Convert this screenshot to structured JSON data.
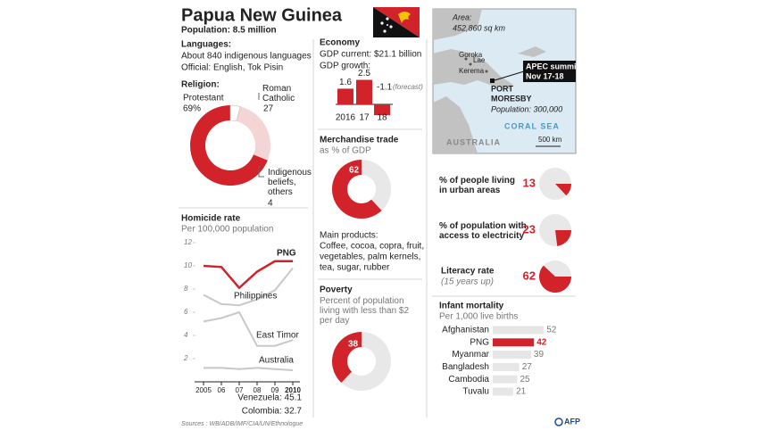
{
  "header": {
    "title": "Papua New Guinea",
    "population": "Population: 8.5 million"
  },
  "languages": {
    "heading": "Languages:",
    "lines": [
      "About 840 indigenous languages",
      "Official: English, Tok Pisin"
    ]
  },
  "economy": {
    "heading": "Economy",
    "lines": [
      "GDP current: $21.1 billion",
      "GDP growth:"
    ]
  },
  "main_products": {
    "heading": "Main products:",
    "lines": [
      "Coffee, cocoa, copra, fruit,",
      "vegetables, palm kernels,",
      "tea, sugar, rubber"
    ]
  },
  "map": {
    "area": [
      "Area:",
      "452,860 sq km"
    ],
    "places": [
      "Goroka",
      "Lae",
      "Kerema"
    ],
    "event": [
      "APEC summit",
      "Nov 17-18"
    ],
    "capital": [
      "PORT",
      "MORESBY"
    ],
    "capital_population": "Population: 300,000",
    "sea": "CORAL SEA",
    "country": "AUSTRALIA",
    "scale": "500 km"
  },
  "sources": "Sources : WB/ADB/IMF/CIA/UN/Ethnologue",
  "credit": "AFP",
  "chart_data": [
    {
      "type": "pie",
      "title": "Religion:",
      "categories": [
        "Protestant",
        "Roman Catholic",
        "Indigenous beliefs, others"
      ],
      "values": [
        69,
        27,
        4
      ],
      "value_labels": [
        "69%",
        "27",
        "4"
      ],
      "colors": [
        "#d2232a",
        "#f4d5d6",
        "#ffffff"
      ]
    },
    {
      "type": "line",
      "title": "Homicide rate",
      "subtitle": "Per 100,000 population",
      "categories": [
        "2005",
        "06",
        "07",
        "08",
        "09",
        "2010"
      ],
      "series": [
        {
          "name": "PNG",
          "color": "#d2232a",
          "values": [
            10,
            9.9,
            8.1,
            9.5,
            10.4,
            10.4
          ]
        },
        {
          "name": "Philippines",
          "color": "#c8c8c8",
          "values": [
            7.5,
            6.7,
            6.6,
            7.1,
            7.9,
            9.8
          ]
        },
        {
          "name": "East Timor",
          "color": "#c8c8c8",
          "values": [
            5.2,
            5.5,
            6,
            3.1,
            3.1,
            3.6
          ]
        },
        {
          "name": "Australia",
          "color": "#c8c8c8",
          "values": [
            1.2,
            1.2,
            1.1,
            1.2,
            1.1,
            1
          ]
        }
      ],
      "ylim": [
        0,
        12
      ],
      "yticks": [
        2,
        4,
        6,
        8,
        10,
        12
      ],
      "grid": false,
      "annotations": [
        "Venezuela: 45.1",
        "Colombia: 32.7"
      ]
    },
    {
      "type": "bar",
      "categories": [
        "2016",
        "17",
        "18"
      ],
      "values": [
        1.6,
        2.5,
        -1.1
      ],
      "color": "#d2232a",
      "annotation": "(forecast)"
    },
    {
      "type": "pie",
      "title": "Merchandise trade",
      "subtitle": "as % of GDP",
      "values": [
        62
      ],
      "colors": [
        "#d2232a"
      ],
      "background": "#e8e8e8"
    },
    {
      "type": "pie",
      "title": "Poverty",
      "subtitle": "Percent of population living with less than $2 per day",
      "values": [
        38
      ],
      "colors": [
        "#d2232a"
      ],
      "background": "#e8e8e8"
    },
    {
      "type": "pie",
      "title": "% of people living in urban areas",
      "values": [
        13
      ],
      "colors": [
        "#d2232a"
      ],
      "background": "#e8e8e8"
    },
    {
      "type": "pie",
      "title": "% of population with access to electricity",
      "values": [
        23
      ],
      "colors": [
        "#d2232a"
      ],
      "background": "#e8e8e8"
    },
    {
      "type": "pie",
      "title": "Literacy rate",
      "subtitle": "(15 years up)",
      "values": [
        62
      ],
      "colors": [
        "#d2232a"
      ],
      "background": "#e8e8e8"
    },
    {
      "type": "bar",
      "orientation": "horizontal",
      "title": "Infant mortality",
      "subtitle": "Per 1,000 live births",
      "categories": [
        "Afghanistan",
        "PNG",
        "Myanmar",
        "Bangladesh",
        "Cambodia",
        "Tuvalu"
      ],
      "values": [
        52,
        42,
        39,
        27,
        25,
        21
      ],
      "colors": [
        "#e6e6e6",
        "#d2232a",
        "#e6e6e6",
        "#e6e6e6",
        "#e6e6e6",
        "#e6e6e6"
      ]
    }
  ]
}
